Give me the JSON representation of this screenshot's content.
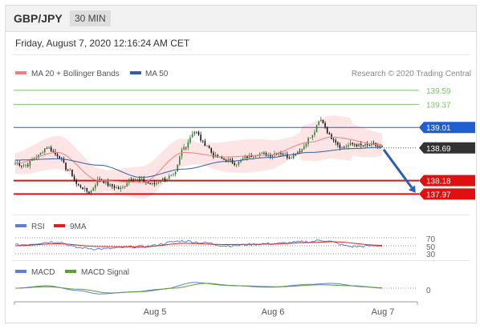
{
  "header": {
    "pair": "GBP/JPY",
    "timeframe": "30 MIN"
  },
  "datetime": "Friday, August 7, 2020 12:16:24 AM CET",
  "credit": "Research © 2020 Trading Central",
  "colors": {
    "ma20": "#f08080",
    "ma50": "#2f5fa8",
    "bbFill": "#fde0e0",
    "resistance": "#7dc26e",
    "pivot": "#1f5fd0",
    "support": "#e01010",
    "current": "#333333",
    "candleUp": "#2e7d32",
    "candleDown": "#111111",
    "rsi": "#5b7fd6",
    "rsiMa": "#e02020",
    "macd": "#5b7fd6",
    "macdSignal": "#5aa02c",
    "arrow": "#2f5fa8"
  },
  "chart_data": [
    {
      "type": "candlestick",
      "title": "GBP/JPY",
      "legend": [
        "MA 20 + Bollinger Bands",
        "MA 50"
      ],
      "legend_placement": "top-left",
      "ylim": [
        137.75,
        139.75
      ],
      "x_ticks": [
        "Aug 5",
        "Aug 6",
        "Aug 7"
      ],
      "price_levels": [
        {
          "label": "139.59",
          "value": 139.59,
          "kind": "resistance"
        },
        {
          "label": "139.37",
          "value": 139.37,
          "kind": "resistance"
        },
        {
          "label": "139.01",
          "value": 139.01,
          "kind": "pivot"
        },
        {
          "label": "138.69",
          "value": 138.69,
          "kind": "current"
        },
        {
          "label": "138.18",
          "value": 138.18,
          "kind": "support"
        },
        {
          "label": "137.97",
          "value": 137.97,
          "kind": "support"
        }
      ],
      "series_anchors_close": [
        [
          0,
          138.45
        ],
        [
          5,
          138.42
        ],
        [
          10,
          138.55
        ],
        [
          15,
          138.7
        ],
        [
          20,
          138.58
        ],
        [
          25,
          138.35
        ],
        [
          30,
          138.1
        ],
        [
          35,
          138.0
        ],
        [
          40,
          138.2
        ],
        [
          45,
          138.1
        ],
        [
          50,
          138.05
        ],
        [
          55,
          138.22
        ],
        [
          60,
          138.18
        ],
        [
          65,
          138.12
        ],
        [
          70,
          138.2
        ],
        [
          75,
          138.25
        ],
        [
          80,
          138.7
        ],
        [
          85,
          138.95
        ],
        [
          90,
          138.75
        ],
        [
          95,
          138.55
        ],
        [
          100,
          138.5
        ],
        [
          105,
          138.45
        ],
        [
          110,
          138.55
        ],
        [
          115,
          138.6
        ],
        [
          120,
          138.58
        ],
        [
          125,
          138.62
        ],
        [
          130,
          138.55
        ],
        [
          135,
          138.65
        ],
        [
          140,
          138.85
        ],
        [
          145,
          139.12
        ],
        [
          150,
          138.85
        ],
        [
          155,
          138.7
        ],
        [
          160,
          138.75
        ],
        [
          165,
          138.72
        ],
        [
          170,
          138.74
        ],
        [
          174,
          138.69
        ]
      ],
      "ma20_anchors": [
        [
          0,
          138.45
        ],
        [
          20,
          138.62
        ],
        [
          40,
          138.18
        ],
        [
          60,
          138.15
        ],
        [
          80,
          138.62
        ],
        [
          100,
          138.55
        ],
        [
          120,
          138.58
        ],
        [
          140,
          138.78
        ],
        [
          150,
          138.86
        ],
        [
          174,
          138.74
        ]
      ],
      "ma50_anchors": [
        [
          0,
          138.5
        ],
        [
          20,
          138.52
        ],
        [
          40,
          138.42
        ],
        [
          60,
          138.23
        ],
        [
          80,
          138.36
        ],
        [
          100,
          138.48
        ],
        [
          120,
          138.54
        ],
        [
          140,
          138.62
        ],
        [
          160,
          138.68
        ],
        [
          174,
          138.7
        ]
      ],
      "projection": {
        "from": 138.69,
        "to": 137.97
      }
    },
    {
      "type": "line",
      "title": "RSI",
      "legend": [
        "RSI",
        "9MA"
      ],
      "y_ticks": [
        "70",
        "50",
        "30"
      ],
      "ylim": [
        20,
        80
      ],
      "rsi_anchors": [
        [
          0,
          52
        ],
        [
          20,
          60
        ],
        [
          30,
          45
        ],
        [
          40,
          42
        ],
        [
          60,
          48
        ],
        [
          80,
          62
        ],
        [
          90,
          57
        ],
        [
          100,
          50
        ],
        [
          120,
          55
        ],
        [
          140,
          60
        ],
        [
          145,
          64
        ],
        [
          160,
          48
        ],
        [
          174,
          50
        ]
      ],
      "ma_anchors": [
        [
          0,
          50
        ],
        [
          20,
          55
        ],
        [
          40,
          48
        ],
        [
          60,
          47
        ],
        [
          80,
          56
        ],
        [
          100,
          53
        ],
        [
          120,
          54
        ],
        [
          140,
          58
        ],
        [
          150,
          60
        ],
        [
          174,
          51
        ]
      ]
    },
    {
      "type": "line",
      "title": "MACD",
      "legend": [
        "MACD",
        "MACD Signal"
      ],
      "y_ticks": [
        "0"
      ],
      "ylim": [
        -0.25,
        0.25
      ],
      "macd_anchors": [
        [
          0,
          0.0
        ],
        [
          15,
          0.05
        ],
        [
          30,
          -0.05
        ],
        [
          40,
          -0.12
        ],
        [
          55,
          -0.08
        ],
        [
          70,
          -0.02
        ],
        [
          85,
          0.12
        ],
        [
          100,
          0.06
        ],
        [
          120,
          0.02
        ],
        [
          140,
          0.08
        ],
        [
          150,
          0.1
        ],
        [
          165,
          0.03
        ],
        [
          174,
          0.0
        ]
      ],
      "signal_anchors": [
        [
          0,
          0.0
        ],
        [
          15,
          0.03
        ],
        [
          30,
          -0.02
        ],
        [
          45,
          -0.1
        ],
        [
          60,
          -0.07
        ],
        [
          75,
          0.0
        ],
        [
          90,
          0.1
        ],
        [
          105,
          0.05
        ],
        [
          125,
          0.03
        ],
        [
          145,
          0.07
        ],
        [
          160,
          0.05
        ],
        [
          174,
          0.01
        ]
      ]
    }
  ]
}
